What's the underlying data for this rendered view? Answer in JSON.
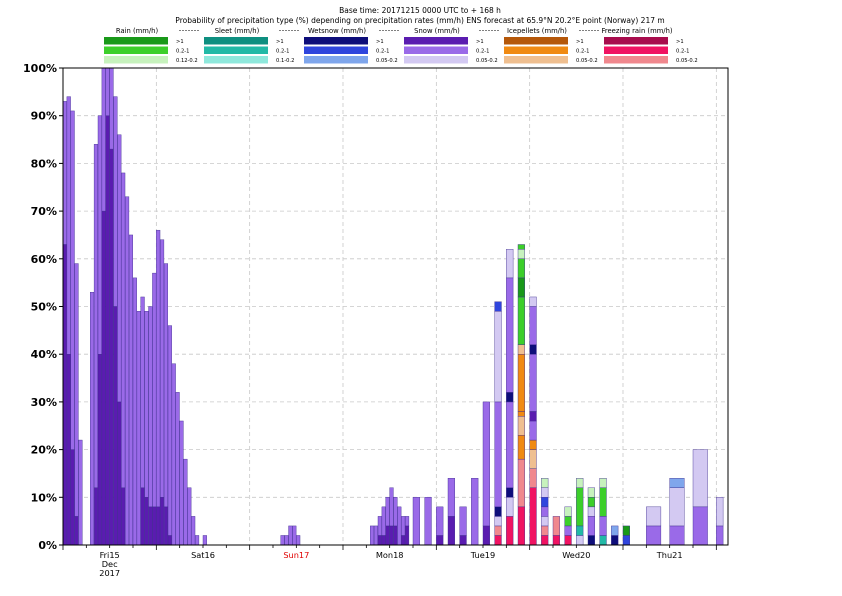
{
  "header": {
    "line1": "Base time: 20171215 0000 UTC to + 168 h",
    "line2": "Probability of precipitation type (%) depending on precipitation rates (mm/h) ENS forecast at 65.9°N  20.2°E point (Norway) 217 m"
  },
  "legend": {
    "rate_labels": [
      ">1",
      "0.2-1",
      "0.05-0.2"
    ],
    "rate_labels_rain": [
      ">1",
      "0.2-1",
      "0.12-0.2"
    ],
    "rate_labels_sleet": [
      ">1",
      "0.2-1",
      "0.1-0.2"
    ],
    "groups": [
      {
        "key": "rain",
        "title": "Rain (mm/h)",
        "colors": [
          "#199919",
          "#3ccf2a",
          "#c7f2bd"
        ]
      },
      {
        "key": "sleet",
        "title": "Sleet (mm/h)",
        "colors": [
          "#0e8f80",
          "#22b9a6",
          "#8fe8dc"
        ]
      },
      {
        "key": "wetsnow",
        "title": "Wetsnow (mm/h)",
        "colors": [
          "#0e0e7a",
          "#2f45dd",
          "#7fa6ec"
        ]
      },
      {
        "key": "snow",
        "title": "Snow (mm/h)",
        "colors": [
          "#5a1cb0",
          "#9a6ae8",
          "#d3c9f2"
        ]
      },
      {
        "key": "icepellets",
        "title": "Icepellets (mm/h)",
        "colors": [
          "#b5580a",
          "#f08a12",
          "#efbf90"
        ]
      },
      {
        "key": "freezing",
        "title": "Freezing rain (mm/h)",
        "colors": [
          "#a80d4d",
          "#f01362",
          "#f0888e"
        ]
      }
    ]
  },
  "chart_data": {
    "type": "bar",
    "title": "Probability of precipitation type (%) depending on precipitation rates (mm/h) ENS forecast at 65.9°N  20.2°E point (Norway) 217 m",
    "ylabel": "",
    "ylim": [
      0,
      100
    ],
    "y_ticks": [
      "0%",
      "10%",
      "20%",
      "30%",
      "40%",
      "50%",
      "60%",
      "70%",
      "80%",
      "90%",
      "100%"
    ],
    "x_ticks": [
      {
        "label": "Fri15",
        "sub1": "Dec",
        "sub2": "2017",
        "hour": 12,
        "color": "#000000"
      },
      {
        "label": "Sat16",
        "hour": 36,
        "color": "#000000"
      },
      {
        "label": "Sun17",
        "hour": 60,
        "color": "#e00000"
      },
      {
        "label": "Mon18",
        "hour": 84,
        "color": "#000000"
      },
      {
        "label": "Tue19",
        "hour": 108,
        "color": "#000000"
      },
      {
        "label": "Wed20",
        "hour": 132,
        "color": "#000000"
      },
      {
        "label": "Thu21",
        "hour": 156,
        "color": "#000000"
      }
    ],
    "x_range_hours": [
      0,
      171
    ],
    "gridlines": true,
    "bars": [
      {
        "h": 0,
        "w": 1,
        "segs": [
          [
            "snow1",
            63
          ],
          [
            "snow2",
            30
          ]
        ]
      },
      {
        "h": 1,
        "w": 1,
        "segs": [
          [
            "snow1",
            40
          ],
          [
            "snow2",
            54
          ]
        ]
      },
      {
        "h": 2,
        "w": 1,
        "segs": [
          [
            "snow1",
            20
          ],
          [
            "snow2",
            71
          ]
        ]
      },
      {
        "h": 3,
        "w": 1,
        "segs": [
          [
            "snow1",
            6
          ],
          [
            "snow2",
            53
          ]
        ]
      },
      {
        "h": 4,
        "w": 1,
        "segs": [
          [
            "snow2",
            22
          ]
        ]
      },
      {
        "h": 7,
        "w": 1,
        "segs": [
          [
            "snow2",
            53
          ]
        ]
      },
      {
        "h": 8,
        "w": 1,
        "segs": [
          [
            "snow1",
            12
          ],
          [
            "snow2",
            72
          ]
        ]
      },
      {
        "h": 9,
        "w": 1,
        "segs": [
          [
            "snow1",
            40
          ],
          [
            "snow2",
            50
          ]
        ]
      },
      {
        "h": 10,
        "w": 1,
        "segs": [
          [
            "snow1",
            70
          ],
          [
            "snow2",
            30
          ]
        ]
      },
      {
        "h": 11,
        "w": 1,
        "segs": [
          [
            "snow1",
            90
          ],
          [
            "snow2",
            10
          ]
        ]
      },
      {
        "h": 12,
        "w": 1,
        "segs": [
          [
            "snow1",
            83
          ],
          [
            "snow2",
            17
          ]
        ]
      },
      {
        "h": 13,
        "w": 1,
        "segs": [
          [
            "snow1",
            50
          ],
          [
            "snow2",
            44
          ]
        ]
      },
      {
        "h": 14,
        "w": 1,
        "segs": [
          [
            "snow1",
            30
          ],
          [
            "snow2",
            56
          ]
        ]
      },
      {
        "h": 15,
        "w": 1,
        "segs": [
          [
            "snow1",
            12
          ],
          [
            "snow2",
            66
          ]
        ]
      },
      {
        "h": 16,
        "w": 1,
        "segs": [
          [
            "snow2",
            73
          ]
        ]
      },
      {
        "h": 17,
        "w": 1,
        "segs": [
          [
            "snow2",
            65
          ]
        ]
      },
      {
        "h": 18,
        "w": 1,
        "segs": [
          [
            "snow2",
            56
          ]
        ]
      },
      {
        "h": 19,
        "w": 1,
        "segs": [
          [
            "snow2",
            49
          ]
        ]
      },
      {
        "h": 20,
        "w": 1,
        "segs": [
          [
            "snow1",
            12
          ],
          [
            "snow2",
            40
          ]
        ]
      },
      {
        "h": 21,
        "w": 1,
        "segs": [
          [
            "snow1",
            10
          ],
          [
            "snow2",
            39
          ]
        ]
      },
      {
        "h": 22,
        "w": 1,
        "segs": [
          [
            "snow1",
            8
          ],
          [
            "snow2",
            42
          ]
        ]
      },
      {
        "h": 23,
        "w": 1,
        "segs": [
          [
            "snow1",
            8
          ],
          [
            "snow2",
            49
          ]
        ]
      },
      {
        "h": 24,
        "w": 1,
        "segs": [
          [
            "snow1",
            8
          ],
          [
            "snow2",
            58
          ]
        ]
      },
      {
        "h": 25,
        "w": 1,
        "segs": [
          [
            "snow1",
            10
          ],
          [
            "snow2",
            54
          ]
        ]
      },
      {
        "h": 26,
        "w": 1,
        "segs": [
          [
            "snow1",
            8
          ],
          [
            "snow2",
            51
          ]
        ]
      },
      {
        "h": 27,
        "w": 1,
        "segs": [
          [
            "snow1",
            2
          ],
          [
            "snow2",
            44
          ]
        ]
      },
      {
        "h": 28,
        "w": 1,
        "segs": [
          [
            "snow2",
            38
          ]
        ]
      },
      {
        "h": 29,
        "w": 1,
        "segs": [
          [
            "snow2",
            32
          ]
        ]
      },
      {
        "h": 30,
        "w": 1,
        "segs": [
          [
            "snow2",
            26
          ]
        ]
      },
      {
        "h": 31,
        "w": 1,
        "segs": [
          [
            "snow2",
            18
          ]
        ]
      },
      {
        "h": 32,
        "w": 1,
        "segs": [
          [
            "snow2",
            12
          ]
        ]
      },
      {
        "h": 33,
        "w": 1,
        "segs": [
          [
            "snow2",
            6
          ]
        ]
      },
      {
        "h": 34,
        "w": 1,
        "segs": [
          [
            "snow2",
            2
          ]
        ]
      },
      {
        "h": 36,
        "w": 1,
        "segs": [
          [
            "snow2",
            2
          ]
        ]
      },
      {
        "h": 56,
        "w": 1,
        "segs": [
          [
            "snow2",
            2
          ]
        ]
      },
      {
        "h": 57,
        "w": 1,
        "segs": [
          [
            "snow2",
            2
          ]
        ]
      },
      {
        "h": 58,
        "w": 1,
        "segs": [
          [
            "snow2",
            4
          ]
        ]
      },
      {
        "h": 59,
        "w": 1,
        "segs": [
          [
            "snow2",
            4
          ]
        ]
      },
      {
        "h": 60,
        "w": 1,
        "segs": [
          [
            "snow2",
            2
          ]
        ]
      },
      {
        "h": 79,
        "w": 1,
        "segs": [
          [
            "snow2",
            4
          ]
        ]
      },
      {
        "h": 80,
        "w": 1,
        "segs": [
          [
            "snow2",
            4
          ]
        ]
      },
      {
        "h": 81,
        "w": 1,
        "segs": [
          [
            "snow1",
            2
          ],
          [
            "snow2",
            4
          ]
        ]
      },
      {
        "h": 82,
        "w": 1,
        "segs": [
          [
            "snow1",
            2
          ],
          [
            "snow2",
            6
          ]
        ]
      },
      {
        "h": 83,
        "w": 1,
        "segs": [
          [
            "snow1",
            4
          ],
          [
            "snow2",
            6
          ]
        ]
      },
      {
        "h": 84,
        "w": 1,
        "segs": [
          [
            "snow1",
            4
          ],
          [
            "snow2",
            8
          ]
        ]
      },
      {
        "h": 85,
        "w": 1,
        "segs": [
          [
            "snow1",
            4
          ],
          [
            "snow2",
            6
          ]
        ]
      },
      {
        "h": 86,
        "w": 1,
        "segs": [
          [
            "snow2",
            8
          ]
        ]
      },
      {
        "h": 87,
        "w": 1,
        "segs": [
          [
            "snow1",
            2
          ],
          [
            "snow2",
            4
          ]
        ]
      },
      {
        "h": 88,
        "w": 1,
        "segs": [
          [
            "snow1",
            4
          ],
          [
            "snow2",
            2
          ]
        ]
      },
      {
        "h": 90,
        "w": 2,
        "segs": [
          [
            "snow2",
            10
          ]
        ]
      },
      {
        "h": 93,
        "w": 2,
        "segs": [
          [
            "snow2",
            10
          ]
        ]
      },
      {
        "h": 96,
        "w": 2,
        "segs": [
          [
            "snow1",
            2
          ],
          [
            "snow2",
            6
          ]
        ]
      },
      {
        "h": 99,
        "w": 2,
        "segs": [
          [
            "snow1",
            6
          ],
          [
            "snow2",
            8
          ]
        ]
      },
      {
        "h": 102,
        "w": 2,
        "segs": [
          [
            "snow1",
            2
          ],
          [
            "snow2",
            6
          ]
        ]
      },
      {
        "h": 105,
        "w": 2,
        "segs": [
          [
            "snow2",
            14
          ]
        ]
      },
      {
        "h": 108,
        "w": 2,
        "segs": [
          [
            "snow1",
            4
          ],
          [
            "snow2",
            26
          ]
        ]
      },
      {
        "h": 111,
        "w": 2,
        "segs": [
          [
            "frz2",
            2
          ],
          [
            "frz3",
            2
          ],
          [
            "snow3",
            2
          ],
          [
            "wet1",
            2
          ],
          [
            "snow2",
            22
          ],
          [
            "snow3",
            19
          ],
          [
            "wet2",
            2
          ]
        ]
      },
      {
        "h": 114,
        "w": 2,
        "segs": [
          [
            "frz2",
            6
          ],
          [
            "snow3",
            4
          ],
          [
            "wet1",
            2
          ],
          [
            "snow2",
            18
          ],
          [
            "wet1",
            2
          ],
          [
            "snow2",
            24
          ],
          [
            "snow3",
            6
          ]
        ]
      },
      {
        "h": 117,
        "w": 2,
        "segs": [
          [
            "frz2",
            8
          ],
          [
            "frz3",
            10
          ],
          [
            "ice2",
            5
          ],
          [
            "ice3",
            4
          ],
          [
            "ice2",
            1
          ],
          [
            "ice2",
            12
          ],
          [
            "ice3",
            2
          ],
          [
            "rain2",
            10
          ],
          [
            "rain1",
            4
          ],
          [
            "rain2",
            4
          ],
          [
            "rain3",
            2
          ],
          [
            "rain2",
            1
          ]
        ]
      },
      {
        "h": 120,
        "w": 2,
        "segs": [
          [
            "frz2",
            12
          ],
          [
            "frz3",
            4
          ],
          [
            "ice3",
            4
          ],
          [
            "ice2",
            2
          ],
          [
            "snow2",
            4
          ],
          [
            "snow1",
            2
          ],
          [
            "snow2",
            12
          ],
          [
            "wet1",
            2
          ],
          [
            "snow2",
            8
          ],
          [
            "snow3",
            2
          ]
        ]
      },
      {
        "h": 123,
        "w": 2,
        "segs": [
          [
            "frz2",
            2
          ],
          [
            "frz3",
            2
          ],
          [
            "snow3",
            2
          ],
          [
            "snow2",
            2
          ],
          [
            "wet2",
            2
          ],
          [
            "snow3",
            2
          ],
          [
            "rain3",
            2
          ]
        ]
      },
      {
        "h": 126,
        "w": 2,
        "segs": [
          [
            "frz2",
            2
          ],
          [
            "frz3",
            4
          ]
        ]
      },
      {
        "h": 129,
        "w": 2,
        "segs": [
          [
            "frz2",
            2
          ],
          [
            "snow2",
            2
          ],
          [
            "rain2",
            2
          ],
          [
            "rain3",
            2
          ]
        ]
      },
      {
        "h": 132,
        "w": 2,
        "segs": [
          [
            "snow3",
            2
          ],
          [
            "sleet2",
            2
          ],
          [
            "rain2",
            8
          ],
          [
            "rain3",
            2
          ]
        ]
      },
      {
        "h": 135,
        "w": 2,
        "segs": [
          [
            "wet1",
            2
          ],
          [
            "snow2",
            4
          ],
          [
            "snow3",
            2
          ],
          [
            "rain2",
            2
          ],
          [
            "rain3",
            2
          ]
        ]
      },
      {
        "h": 138,
        "w": 2,
        "segs": [
          [
            "sleet2",
            2
          ],
          [
            "snow2",
            4
          ],
          [
            "rain2",
            6
          ],
          [
            "rain3",
            2
          ]
        ]
      },
      {
        "h": 141,
        "w": 2,
        "segs": [
          [
            "wet1",
            2
          ],
          [
            "wet3",
            2
          ]
        ]
      },
      {
        "h": 144,
        "w": 2,
        "segs": [
          [
            "wet2",
            2
          ],
          [
            "rain1",
            2
          ]
        ]
      },
      {
        "h": 150,
        "w": 4,
        "segs": [
          [
            "snow2",
            4
          ],
          [
            "snow3",
            4
          ]
        ]
      },
      {
        "h": 156,
        "w": 4,
        "segs": [
          [
            "snow2",
            4
          ],
          [
            "snow3",
            8
          ],
          [
            "wet3",
            2
          ]
        ]
      },
      {
        "h": 162,
        "w": 4,
        "segs": [
          [
            "snow2",
            8
          ],
          [
            "snow3",
            12
          ]
        ]
      },
      {
        "h": 168,
        "w": 2,
        "segs": [
          [
            "snow2",
            4
          ],
          [
            "snow3",
            6
          ]
        ]
      }
    ]
  }
}
